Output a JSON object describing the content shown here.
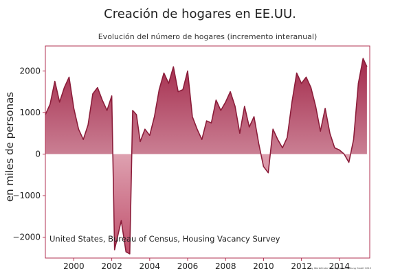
{
  "title": "Creación de hogares en EE.UU.",
  "subtitle": "Evolución del número de hogares (incremento interanual)",
  "ylabel": "en miles de personas",
  "source": "United States, Bureau of Census, Housing Vacancy Survey",
  "copyright": "© by Wertefinder Vermögensverwaltung GmbH 2015",
  "chart_data": {
    "type": "area",
    "title": "Creación de hogares en EE.UU.",
    "subtitle": "Evolución del número de hogares (incremento interanual)",
    "xlabel": "",
    "ylabel": "en miles de personas",
    "xlim": [
      1998.5,
      2015.6
    ],
    "ylim": [
      -2500,
      2600
    ],
    "x_ticks": [
      2000,
      2002,
      2004,
      2006,
      2008,
      2010,
      2012,
      2014
    ],
    "y_ticks": [
      -2000,
      -1000,
      0,
      1000,
      2000
    ],
    "grid": false,
    "colors": {
      "line": "#8b1d3a",
      "fill_top": "#a3294a",
      "fill_bottom": "#f6e4e9",
      "axis": "#b03050"
    },
    "series": [
      {
        "x": [
          1998.5,
          1998.75,
          1999.0,
          1999.25,
          1999.5,
          1999.75,
          2000.0,
          2000.25,
          2000.5,
          2000.75,
          2001.0,
          2001.25,
          2001.5,
          2001.75,
          2002.0,
          2002.15,
          2002.5,
          2002.75,
          2002.95,
          2003.1,
          2003.3,
          2003.5,
          2003.75,
          2004.0,
          2004.25,
          2004.5,
          2004.75,
          2005.0,
          2005.25,
          2005.5,
          2005.75,
          2006.0,
          2006.25,
          2006.5,
          2006.75,
          2007.0,
          2007.25,
          2007.5,
          2007.75,
          2008.0,
          2008.25,
          2008.5,
          2008.75,
          2009.0,
          2009.25,
          2009.5,
          2009.75,
          2010.0,
          2010.25,
          2010.5,
          2010.75,
          2011.0,
          2011.25,
          2011.5,
          2011.75,
          2012.0,
          2012.25,
          2012.5,
          2012.75,
          2013.0,
          2013.25,
          2013.5,
          2013.75,
          2014.0,
          2014.25,
          2014.5,
          2014.75,
          2015.0,
          2015.25,
          2015.45
        ],
        "y": [
          950,
          1200,
          1750,
          1250,
          1600,
          1850,
          1100,
          600,
          350,
          700,
          1450,
          1600,
          1300,
          1050,
          1400,
          -2300,
          -1600,
          -2350,
          -2400,
          1050,
          950,
          300,
          600,
          450,
          900,
          1550,
          1950,
          1700,
          2100,
          1500,
          1550,
          2000,
          900,
          600,
          350,
          800,
          750,
          1300,
          1050,
          1250,
          1500,
          1150,
          500,
          1150,
          650,
          900,
          250,
          -300,
          -450,
          600,
          350,
          150,
          400,
          1250,
          1950,
          1700,
          1850,
          1600,
          1150,
          550,
          1100,
          500,
          150,
          100,
          0,
          -200,
          350,
          1700,
          2300,
          2100
        ]
      }
    ]
  }
}
